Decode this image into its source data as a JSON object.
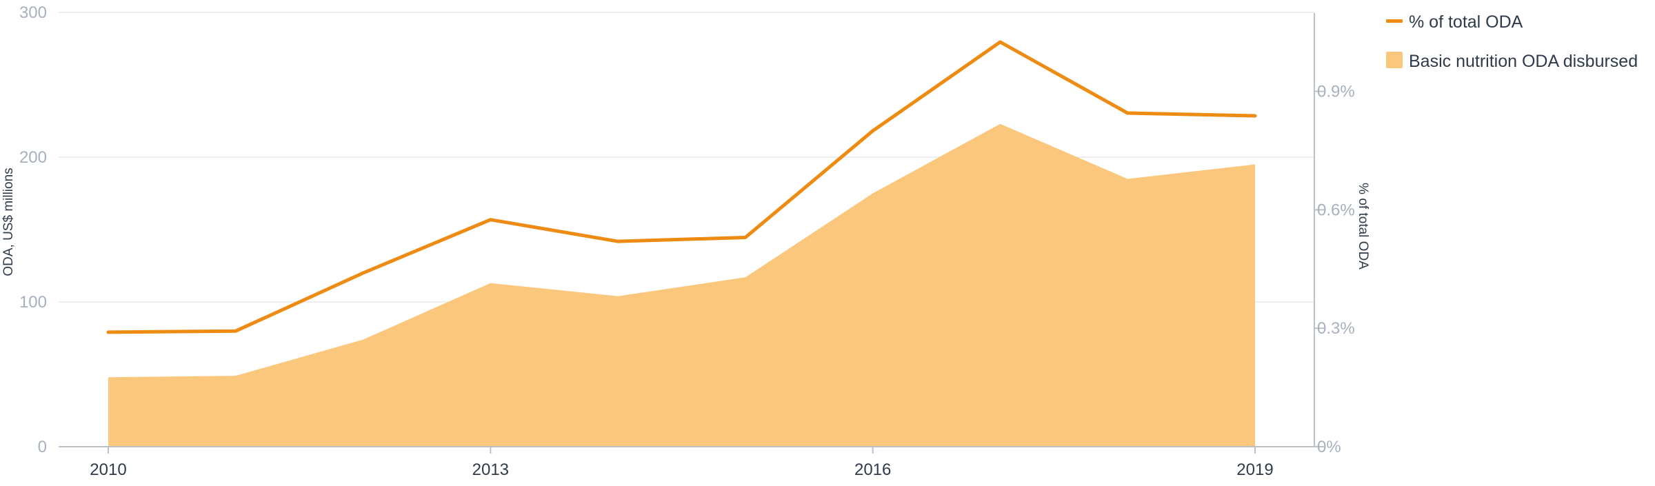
{
  "chart_data": {
    "type": "area",
    "x": [
      2010,
      2011,
      2012,
      2013,
      2014,
      2015,
      2016,
      2017,
      2018,
      2019
    ],
    "series": [
      {
        "name": "Basic nutrition ODA disbursed",
        "type": "area",
        "axis": "left",
        "color": "#fac77c",
        "values": [
          48,
          49,
          74,
          113,
          104,
          117,
          175,
          223,
          185,
          195
        ]
      },
      {
        "name": "% of total ODA",
        "type": "line",
        "axis": "right",
        "color": "#ee8b13",
        "values": [
          0.29,
          0.293,
          0.44,
          0.575,
          0.52,
          0.53,
          0.8,
          1.025,
          0.845,
          0.838
        ]
      }
    ],
    "y_left": {
      "label": "ODA, US$ millions",
      "ylim": [
        0,
        300
      ],
      "ticks": [
        "0",
        "100",
        "200",
        "300"
      ]
    },
    "y_right": {
      "label": "% of total ODA",
      "ylim": [
        0,
        1.1
      ],
      "ticks": [
        "0%",
        "0.3%",
        "0.6%",
        "0.9%"
      ]
    },
    "x_ticks": [
      "2010",
      "2013",
      "2016",
      "2019"
    ],
    "grid": true,
    "legend_position": "top-right",
    "legend": [
      {
        "label": "% of total ODA",
        "marker": "line",
        "color": "#ee8b13"
      },
      {
        "label": "Basic nutrition ODA disbursed",
        "marker": "square",
        "color": "#fac77c"
      }
    ]
  }
}
